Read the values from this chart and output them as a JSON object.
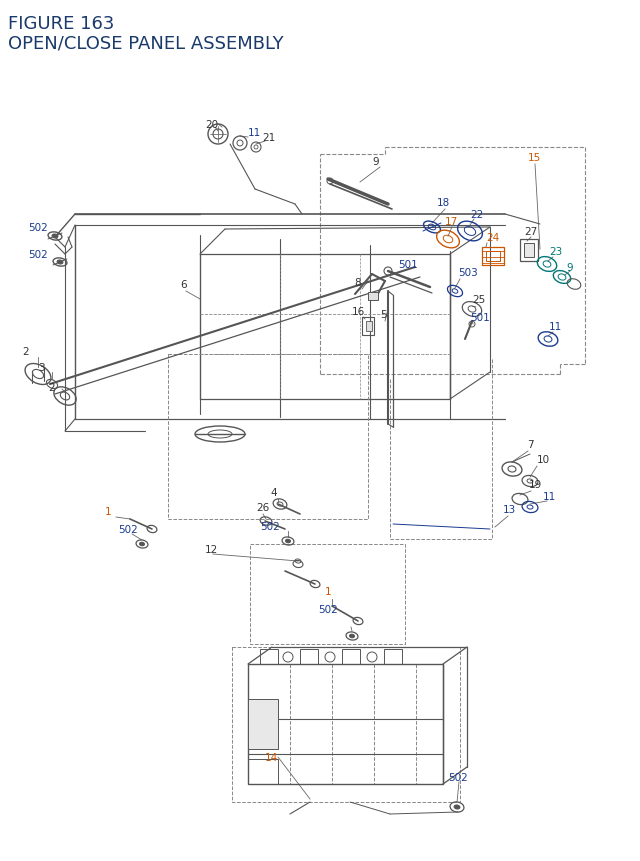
{
  "title_line1": "FIGURE 163",
  "title_line2": "OPEN/CLOSE PANEL ASSEMBLY",
  "title_color": "#1a3a6b",
  "title_fontsize": 12,
  "bg_color": "#ffffff",
  "c_black": "#333333",
  "c_blue": "#1a3a8f",
  "c_orange": "#cc5500",
  "c_teal": "#007777",
  "c_gray": "#555555",
  "c_dash": "#888888"
}
